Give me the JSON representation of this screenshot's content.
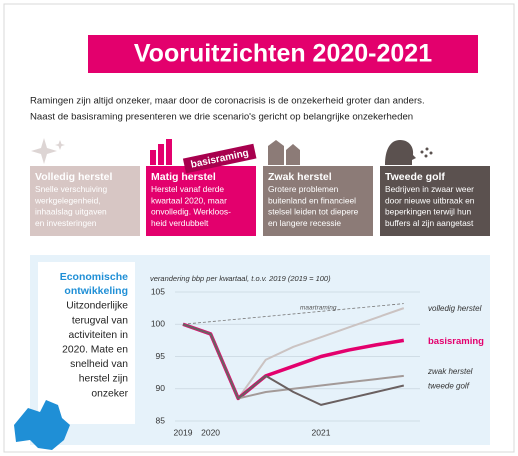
{
  "header": {
    "title": "Vooruitzichten 2020-2021",
    "intro": [
      "Ramingen zijn altijd onzeker, maar door de coronacrisis is de onzekerheid groter dan anders.",
      "Naast de basisraming presenteren we drie scenario's gericht op belangrijke onzekerheden"
    ]
  },
  "scenarios": [
    {
      "title": "Volledig herstel",
      "color": "#d7c6c4",
      "text": [
        "Snelle verschuiving",
        "werkgelegenheid,",
        "inhaalslag uitgaven",
        "en investeringen"
      ]
    },
    {
      "title": "Matig herstel",
      "tag": "basisraming",
      "color": "#e3006d",
      "text": [
        "Herstel vanaf derde",
        "kwartaal 2020, maar",
        "onvolledig. Werkloos-",
        "heid verdubbelt"
      ]
    },
    {
      "title": "Zwak herstel",
      "color": "#8c7b77",
      "text": [
        "Grotere problemen",
        "buitenland en financieel",
        "stelsel leiden tot diepere",
        "en langere recessie"
      ]
    },
    {
      "title": "Tweede golf",
      "color": "#5b514f",
      "text": [
        "Bedrijven in zwaar weer",
        "door nieuwe uitbraak en",
        "beperkingen terwijl hun",
        "buffers al zijn aangetast"
      ]
    }
  ],
  "sidebar": {
    "title": [
      "Economische",
      "ontwikkeling"
    ],
    "text": [
      "Uitzonderlijke",
      "terugval van",
      "activiteiten in",
      "2020. Mate en",
      "snelheid van",
      "herstel zijn",
      "onzeker"
    ]
  },
  "chart_data": {
    "type": "line",
    "subtitle": "verandering bbp per kwartaal, t.o.v. 2019 (2019 = 100)",
    "categories": [
      "2019",
      "2020",
      null,
      null,
      null,
      "2021",
      null,
      null,
      null
    ],
    "ylim": [
      85,
      105
    ],
    "yticks": [
      85,
      90,
      95,
      100,
      105
    ],
    "grid": true,
    "series": [
      {
        "name": "maartraming",
        "color": "#777777",
        "dashed": true,
        "values": [
          100,
          100.4,
          100.8,
          101.2,
          101.6,
          102,
          102.4,
          102.8,
          103.2
        ]
      },
      {
        "name": "volledig herstel",
        "color": "#cbc3c2",
        "values": [
          100,
          98.5,
          88.5,
          94.5,
          96.5,
          98,
          99.5,
          101,
          102.5
        ]
      },
      {
        "name": "basisraming",
        "color": "#e3006d",
        "values": [
          100,
          98.5,
          88.5,
          92,
          93.5,
          95,
          96,
          96.8,
          97.5
        ]
      },
      {
        "name": "zwak herstel",
        "color": "#a39a98",
        "values": [
          100,
          98.5,
          88.5,
          89.5,
          90,
          90.5,
          91,
          91.5,
          92
        ]
      },
      {
        "name": "tweede golf",
        "color": "#6a6060",
        "values": [
          100,
          98.5,
          88.5,
          92,
          89.5,
          87.5,
          88.5,
          89.5,
          90.5
        ]
      }
    ]
  }
}
